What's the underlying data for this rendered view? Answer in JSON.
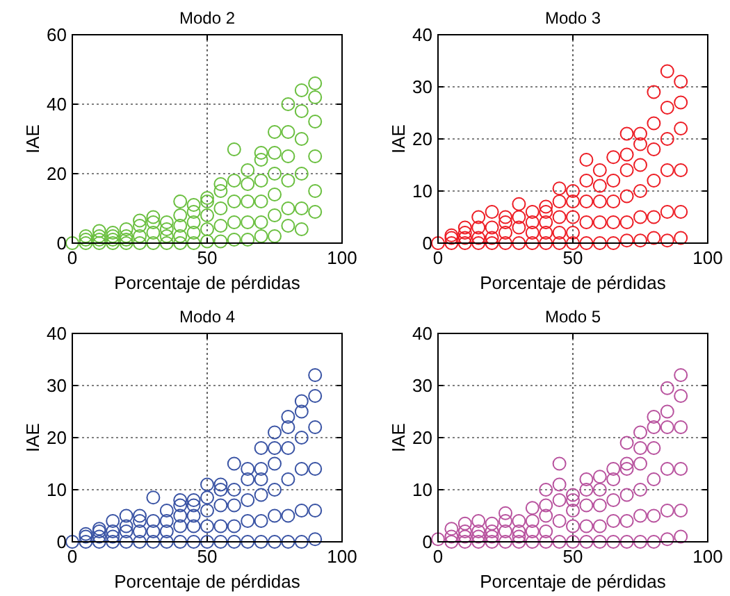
{
  "chart_data": [
    {
      "type": "scatter",
      "title": "Modo 2",
      "xlabel": "Porcentaje de pérdidas",
      "ylabel": "IAE",
      "xlim": [
        0,
        100
      ],
      "xticks": [
        0,
        50,
        100
      ],
      "ylim": [
        0,
        60
      ],
      "yticks": [
        0,
        20,
        40,
        60
      ],
      "grid": true,
      "marker": "circle",
      "series": [
        {
          "color": "#6abf3f",
          "x": [
            0,
            5,
            5,
            5,
            10,
            10,
            10,
            10,
            15,
            15,
            15,
            15,
            20,
            20,
            20,
            20,
            25,
            25,
            25,
            25,
            30,
            30,
            30,
            30,
            35,
            35,
            35,
            35,
            40,
            40,
            40,
            40,
            40,
            45,
            45,
            45,
            45,
            45,
            50,
            50,
            50,
            50,
            50,
            55,
            55,
            55,
            55,
            55,
            60,
            60,
            60,
            60,
            60,
            65,
            65,
            65,
            65,
            65,
            70,
            70,
            70,
            70,
            70,
            70,
            75,
            75,
            75,
            75,
            75,
            75,
            80,
            80,
            80,
            80,
            80,
            80,
            85,
            85,
            85,
            85,
            85,
            85,
            90,
            90,
            90,
            90,
            90,
            90
          ],
          "values": [
            0,
            0,
            1,
            2,
            0,
            1,
            2,
            3.5,
            0,
            1,
            2,
            3,
            0,
            1,
            2,
            4,
            0,
            2,
            5,
            6.5,
            0,
            3,
            6,
            7.5,
            0,
            2,
            4,
            6,
            0,
            2,
            5,
            8,
            12,
            0,
            3,
            6,
            9,
            11,
            0.5,
            4,
            8,
            12,
            13,
            0.5,
            5,
            10,
            15,
            17,
            1,
            6,
            12,
            18,
            27,
            1,
            6,
            12,
            17,
            21,
            2,
            6,
            12,
            18,
            24,
            26,
            2,
            8,
            14,
            20,
            26,
            32,
            5,
            10,
            18,
            25,
            32,
            40,
            4,
            10,
            20,
            30,
            38,
            44,
            9,
            15,
            25,
            35,
            42,
            46
          ]
        }
      ]
    },
    {
      "type": "scatter",
      "title": "Modo 3",
      "xlabel": "Porcentaje de pérdidas",
      "ylabel": "IAE",
      "xlim": [
        0,
        100
      ],
      "xticks": [
        0,
        50,
        100
      ],
      "ylim": [
        0,
        40
      ],
      "yticks": [
        0,
        10,
        20,
        30,
        40
      ],
      "grid": true,
      "marker": "circle",
      "series": [
        {
          "color": "#ed1c24",
          "x": [
            0,
            5,
            5,
            5,
            10,
            10,
            10,
            10,
            15,
            15,
            15,
            15,
            20,
            20,
            20,
            20,
            25,
            25,
            25,
            25,
            30,
            30,
            30,
            30,
            35,
            35,
            35,
            35,
            40,
            40,
            40,
            40,
            40,
            45,
            45,
            45,
            45,
            45,
            50,
            50,
            50,
            50,
            50,
            55,
            55,
            55,
            55,
            55,
            60,
            60,
            60,
            60,
            60,
            65,
            65,
            65,
            65,
            65,
            70,
            70,
            70,
            70,
            70,
            70,
            75,
            75,
            75,
            75,
            75,
            75,
            80,
            80,
            80,
            80,
            80,
            80,
            85,
            85,
            85,
            85,
            85,
            85,
            90,
            90,
            90,
            90,
            90,
            90
          ],
          "values": [
            0,
            0,
            1,
            1.5,
            0,
            1,
            2,
            3,
            0,
            1,
            3,
            5,
            0,
            1,
            3,
            6,
            0,
            2,
            4,
            5,
            0,
            3,
            5,
            7.5,
            0,
            2,
            4,
            6,
            0,
            2,
            4,
            6,
            7,
            0,
            2,
            5,
            8,
            10.5,
            0,
            2,
            5,
            8,
            10,
            0,
            4,
            8,
            12,
            16,
            0,
            4,
            8,
            11,
            14,
            0,
            4,
            8,
            12,
            16.5,
            0.5,
            4,
            9,
            14,
            17,
            21,
            0.5,
            5,
            10,
            15,
            19,
            21,
            1,
            5,
            12,
            18,
            23,
            29,
            0.5,
            6,
            14,
            20,
            26,
            33,
            1,
            6,
            14,
            22,
            27,
            31
          ]
        }
      ]
    },
    {
      "type": "scatter",
      "title": "Modo 4",
      "xlabel": "Porcentaje de pérdidas",
      "ylabel": "IAE",
      "xlim": [
        0,
        100
      ],
      "xticks": [
        0,
        50,
        100
      ],
      "ylim": [
        0,
        40
      ],
      "yticks": [
        0,
        10,
        20,
        30,
        40
      ],
      "grid": true,
      "marker": "circle",
      "series": [
        {
          "color": "#3953a4",
          "x": [
            0,
            5,
            5,
            5,
            10,
            10,
            10,
            10,
            15,
            15,
            15,
            15,
            20,
            20,
            20,
            20,
            25,
            25,
            25,
            25,
            30,
            30,
            30,
            30,
            35,
            35,
            35,
            35,
            40,
            40,
            40,
            40,
            40,
            45,
            45,
            45,
            45,
            45,
            50,
            50,
            50,
            50,
            50,
            55,
            55,
            55,
            55,
            55,
            60,
            60,
            60,
            60,
            60,
            65,
            65,
            65,
            65,
            65,
            70,
            70,
            70,
            70,
            70,
            70,
            75,
            75,
            75,
            75,
            75,
            75,
            80,
            80,
            80,
            80,
            80,
            80,
            85,
            85,
            85,
            85,
            85,
            85,
            90,
            90,
            90,
            90,
            90,
            90
          ],
          "values": [
            0,
            0,
            1,
            1.5,
            0,
            1,
            2,
            2.5,
            0,
            1,
            2,
            4,
            0,
            2,
            3,
            5,
            0,
            2,
            4,
            5,
            0,
            2,
            4,
            8.5,
            0,
            2,
            4,
            6,
            0,
            3,
            5,
            7,
            8,
            0,
            3,
            5,
            7,
            8,
            0,
            3,
            6,
            8.5,
            11,
            0,
            3,
            7,
            10,
            11,
            0,
            3,
            7,
            10,
            15,
            0,
            4,
            8,
            12,
            14,
            0,
            4,
            9,
            12,
            14,
            18,
            0,
            5,
            10,
            15,
            18,
            21,
            0,
            5,
            12,
            18,
            22,
            24,
            0,
            6,
            14,
            20,
            25,
            27,
            0.5,
            6,
            14,
            22,
            28,
            32
          ]
        }
      ]
    },
    {
      "type": "scatter",
      "title": "Modo 5",
      "xlabel": "Porcentaje de pérdidas",
      "ylabel": "IAE",
      "xlim": [
        0,
        100
      ],
      "xticks": [
        0,
        50,
        100
      ],
      "ylim": [
        0,
        40
      ],
      "yticks": [
        0,
        10,
        20,
        30,
        40
      ],
      "grid": true,
      "marker": "circle",
      "series": [
        {
          "color": "#b8529e",
          "x": [
            0,
            5,
            5,
            5,
            10,
            10,
            10,
            10,
            15,
            15,
            15,
            15,
            20,
            20,
            20,
            20,
            25,
            25,
            25,
            25,
            30,
            30,
            30,
            30,
            35,
            35,
            35,
            35,
            40,
            40,
            40,
            40,
            40,
            45,
            45,
            45,
            45,
            45,
            50,
            50,
            50,
            50,
            50,
            55,
            55,
            55,
            55,
            55,
            60,
            60,
            60,
            60,
            60,
            65,
            65,
            65,
            65,
            65,
            70,
            70,
            70,
            70,
            70,
            70,
            75,
            75,
            75,
            75,
            75,
            75,
            80,
            80,
            80,
            80,
            80,
            80,
            85,
            85,
            85,
            85,
            85,
            85,
            90,
            90,
            90,
            90,
            90,
            90
          ],
          "values": [
            0.5,
            0,
            1,
            2.5,
            0,
            1,
            2,
            3.5,
            0,
            1,
            2,
            4,
            0,
            1,
            2,
            3.5,
            0,
            2,
            4,
            5.5,
            0,
            1,
            2,
            4,
            0,
            2,
            4,
            6.5,
            0,
            2,
            5,
            7,
            10,
            0,
            4,
            8,
            11,
            15,
            0,
            3,
            6,
            8,
            9,
            0,
            3,
            7,
            10,
            12,
            0,
            3,
            7,
            10,
            12.5,
            0,
            4,
            8,
            12,
            14,
            0,
            4,
            9,
            14,
            15,
            19,
            0,
            5,
            10,
            15,
            18,
            21,
            0,
            5,
            12,
            18,
            22,
            24,
            0.5,
            6,
            14,
            22,
            25,
            29.5,
            1,
            6,
            14,
            22,
            28,
            32
          ]
        }
      ]
    }
  ]
}
